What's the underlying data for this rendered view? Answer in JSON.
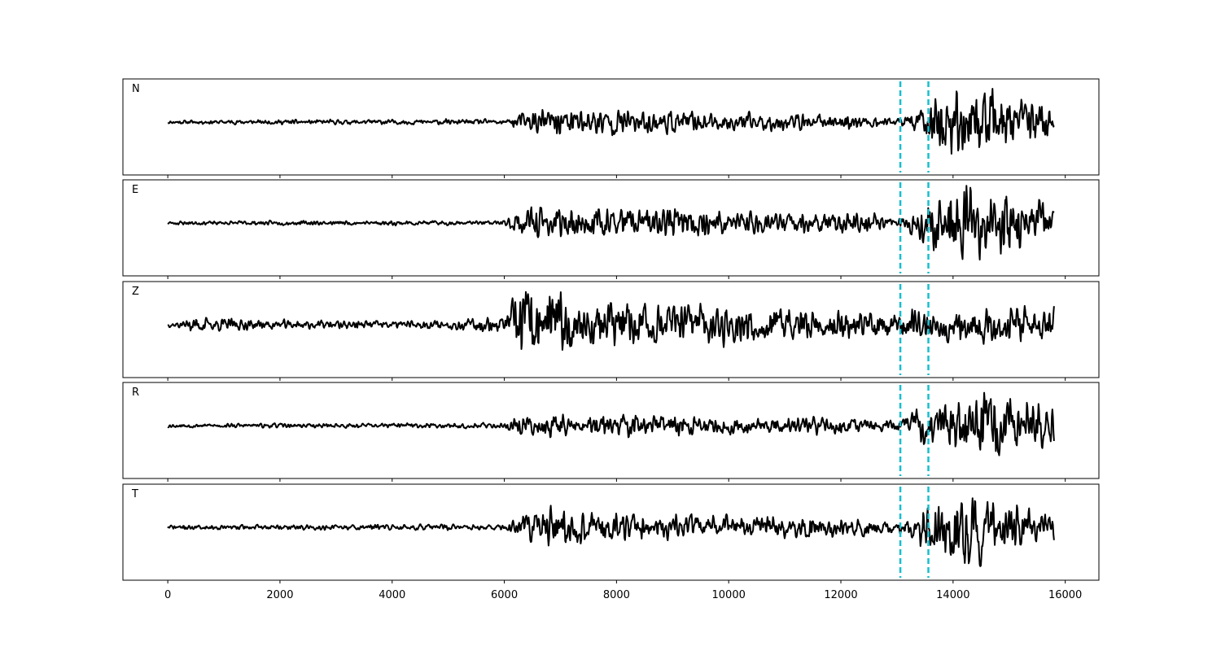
{
  "chart_data": {
    "type": "line",
    "xlim": [
      -800,
      16600
    ],
    "x_ticks": [
      0,
      2000,
      4000,
      6000,
      8000,
      10000,
      12000,
      14000,
      16000
    ],
    "x_tick_labels": [
      "0",
      "2000",
      "4000",
      "6000",
      "8000",
      "10000",
      "12000",
      "14000",
      "16000"
    ],
    "x_range": [
      0,
      15800
    ],
    "markers": [
      13060,
      13560
    ],
    "trace_color": "#000000",
    "marker_color": "#17becf",
    "panels": [
      {
        "label": "N",
        "envelope": [
          [
            0,
            0.05
          ],
          [
            6000,
            0.07
          ],
          [
            6300,
            0.25
          ],
          [
            7000,
            0.4
          ],
          [
            8000,
            0.35
          ],
          [
            9500,
            0.25
          ],
          [
            11000,
            0.22
          ],
          [
            12500,
            0.18
          ],
          [
            13000,
            0.1
          ],
          [
            13550,
            0.45
          ],
          [
            13800,
            0.95
          ],
          [
            14300,
            0.85
          ],
          [
            15000,
            0.65
          ],
          [
            15800,
            0.45
          ]
        ],
        "seed": 11
      },
      {
        "label": "E",
        "envelope": [
          [
            0,
            0.05
          ],
          [
            6000,
            0.06
          ],
          [
            6300,
            0.4
          ],
          [
            7500,
            0.38
          ],
          [
            9000,
            0.35
          ],
          [
            11000,
            0.28
          ],
          [
            12500,
            0.25
          ],
          [
            13000,
            0.15
          ],
          [
            13550,
            0.55
          ],
          [
            14000,
            0.95
          ],
          [
            14800,
            0.85
          ],
          [
            15800,
            0.4
          ]
        ],
        "seed": 23
      },
      {
        "label": "Z",
        "envelope": [
          [
            0,
            0.05
          ],
          [
            500,
            0.2
          ],
          [
            1500,
            0.12
          ],
          [
            5000,
            0.1
          ],
          [
            6000,
            0.25
          ],
          [
            6300,
            0.95
          ],
          [
            6600,
            0.9
          ],
          [
            7500,
            0.6
          ],
          [
            9000,
            0.55
          ],
          [
            11000,
            0.45
          ],
          [
            13000,
            0.35
          ],
          [
            14000,
            0.4
          ],
          [
            15000,
            0.5
          ],
          [
            15800,
            0.45
          ]
        ],
        "seed": 37
      },
      {
        "label": "R",
        "envelope": [
          [
            0,
            0.05
          ],
          [
            6000,
            0.07
          ],
          [
            6300,
            0.3
          ],
          [
            8000,
            0.3
          ],
          [
            10000,
            0.25
          ],
          [
            12000,
            0.2
          ],
          [
            13000,
            0.12
          ],
          [
            13550,
            0.55
          ],
          [
            14200,
            0.95
          ],
          [
            14800,
            0.8
          ],
          [
            15800,
            0.4
          ]
        ],
        "seed": 53
      },
      {
        "label": "T",
        "envelope": [
          [
            0,
            0.06
          ],
          [
            6000,
            0.08
          ],
          [
            6300,
            0.35
          ],
          [
            7000,
            0.5
          ],
          [
            8500,
            0.35
          ],
          [
            11000,
            0.28
          ],
          [
            12500,
            0.22
          ],
          [
            13000,
            0.12
          ],
          [
            13550,
            0.6
          ],
          [
            13800,
            0.9
          ],
          [
            14400,
            0.95
          ],
          [
            15000,
            0.55
          ],
          [
            15800,
            0.35
          ]
        ],
        "seed": 71
      }
    ]
  }
}
